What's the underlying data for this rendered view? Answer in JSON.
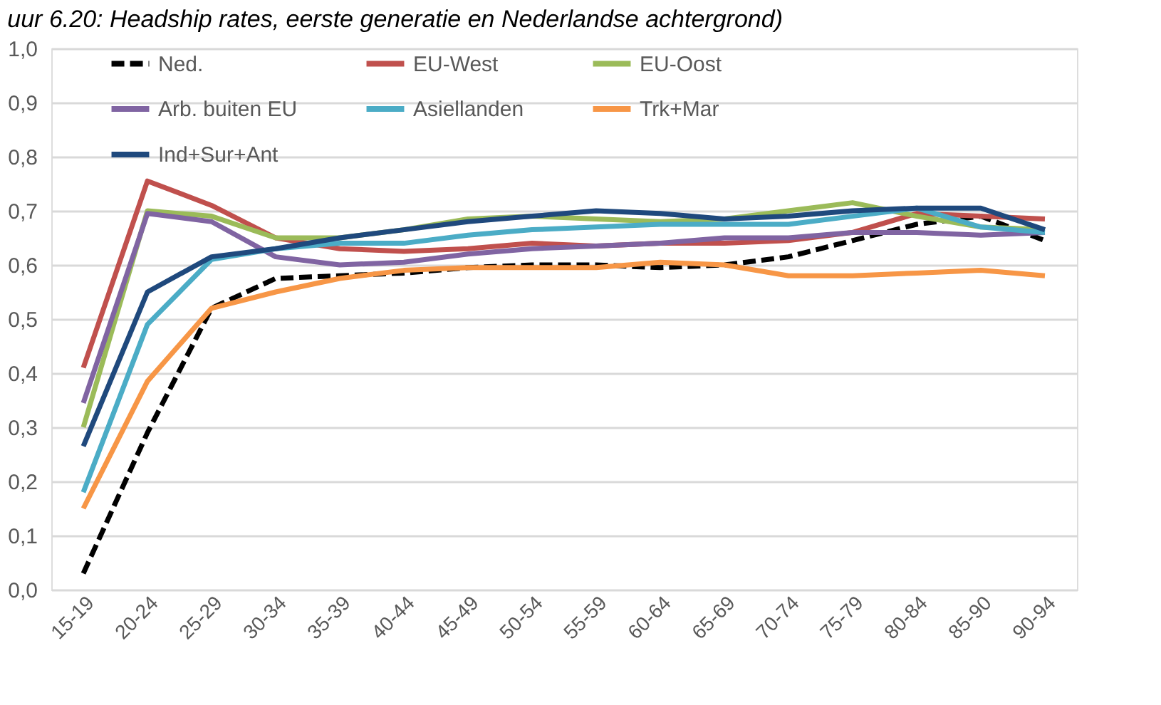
{
  "chart_data": {
    "type": "line",
    "title": "uur 6.20: Headship rates, eerste generatie en Nederlandse achtergrond)",
    "categories": [
      "15-19",
      "20-24",
      "25-29",
      "30-34",
      "35-39",
      "40-44",
      "45-49",
      "50-54",
      "55-59",
      "60-64",
      "65-69",
      "70-74",
      "75-79",
      "80-84",
      "85-90",
      "90-94"
    ],
    "series": [
      {
        "name": "Ned.",
        "color": "#000000",
        "line_style": "dashed",
        "values": [
          0.03,
          0.29,
          0.52,
          0.575,
          0.58,
          0.585,
          0.595,
          0.6,
          0.6,
          0.595,
          0.6,
          0.615,
          0.645,
          0.675,
          0.69,
          0.645
        ]
      },
      {
        "name": "EU-West",
        "color": "#c0504d",
        "values": [
          0.41,
          0.755,
          0.71,
          0.65,
          0.63,
          0.625,
          0.63,
          0.64,
          0.635,
          0.64,
          0.64,
          0.645,
          0.66,
          0.695,
          0.69,
          0.685
        ]
      },
      {
        "name": "EU-Oost",
        "color": "#9bbb59",
        "values": [
          0.3,
          0.7,
          0.69,
          0.65,
          0.65,
          0.665,
          0.685,
          0.69,
          0.685,
          0.68,
          0.685,
          0.7,
          0.715,
          0.69,
          0.67,
          0.665
        ]
      },
      {
        "name": "Arb. buiten EU",
        "color": "#8064a2",
        "values": [
          0.345,
          0.695,
          0.68,
          0.615,
          0.6,
          0.605,
          0.62,
          0.63,
          0.635,
          0.64,
          0.65,
          0.65,
          0.66,
          0.66,
          0.655,
          0.66
        ]
      },
      {
        "name": "Asiellanden",
        "color": "#4bacc6",
        "values": [
          0.18,
          0.49,
          0.61,
          0.63,
          0.64,
          0.64,
          0.655,
          0.665,
          0.67,
          0.675,
          0.675,
          0.675,
          0.69,
          0.705,
          0.67,
          0.66
        ]
      },
      {
        "name": "Trk+Mar",
        "color": "#f79646",
        "values": [
          0.15,
          0.385,
          0.52,
          0.55,
          0.575,
          0.59,
          0.595,
          0.595,
          0.595,
          0.605,
          0.6,
          0.58,
          0.58,
          0.585,
          0.59,
          0.58
        ]
      },
      {
        "name": "Ind+Sur+Ant",
        "color": "#1f497d",
        "values": [
          0.265,
          0.55,
          0.615,
          0.63,
          0.65,
          0.665,
          0.68,
          0.69,
          0.7,
          0.695,
          0.685,
          0.69,
          0.7,
          0.705,
          0.705,
          0.665
        ]
      }
    ],
    "ylim": [
      0,
      1
    ],
    "yticks": [
      {
        "value": 0,
        "label": "0,0"
      },
      {
        "value": 0.1,
        "label": "0,1"
      },
      {
        "value": 0.2,
        "label": "0,2"
      },
      {
        "value": 0.3,
        "label": "0,3"
      },
      {
        "value": 0.4,
        "label": "0,4"
      },
      {
        "value": 0.5,
        "label": "0,5"
      },
      {
        "value": 0.6,
        "label": "0,6"
      },
      {
        "value": 0.7,
        "label": "0,7"
      },
      {
        "value": 0.8,
        "label": "0,8"
      },
      {
        "value": 0.9,
        "label": "0,9"
      },
      {
        "value": 1,
        "label": "1,0"
      }
    ],
    "grid": "y",
    "legend": "top",
    "marker": "none",
    "line_style": "solid"
  }
}
